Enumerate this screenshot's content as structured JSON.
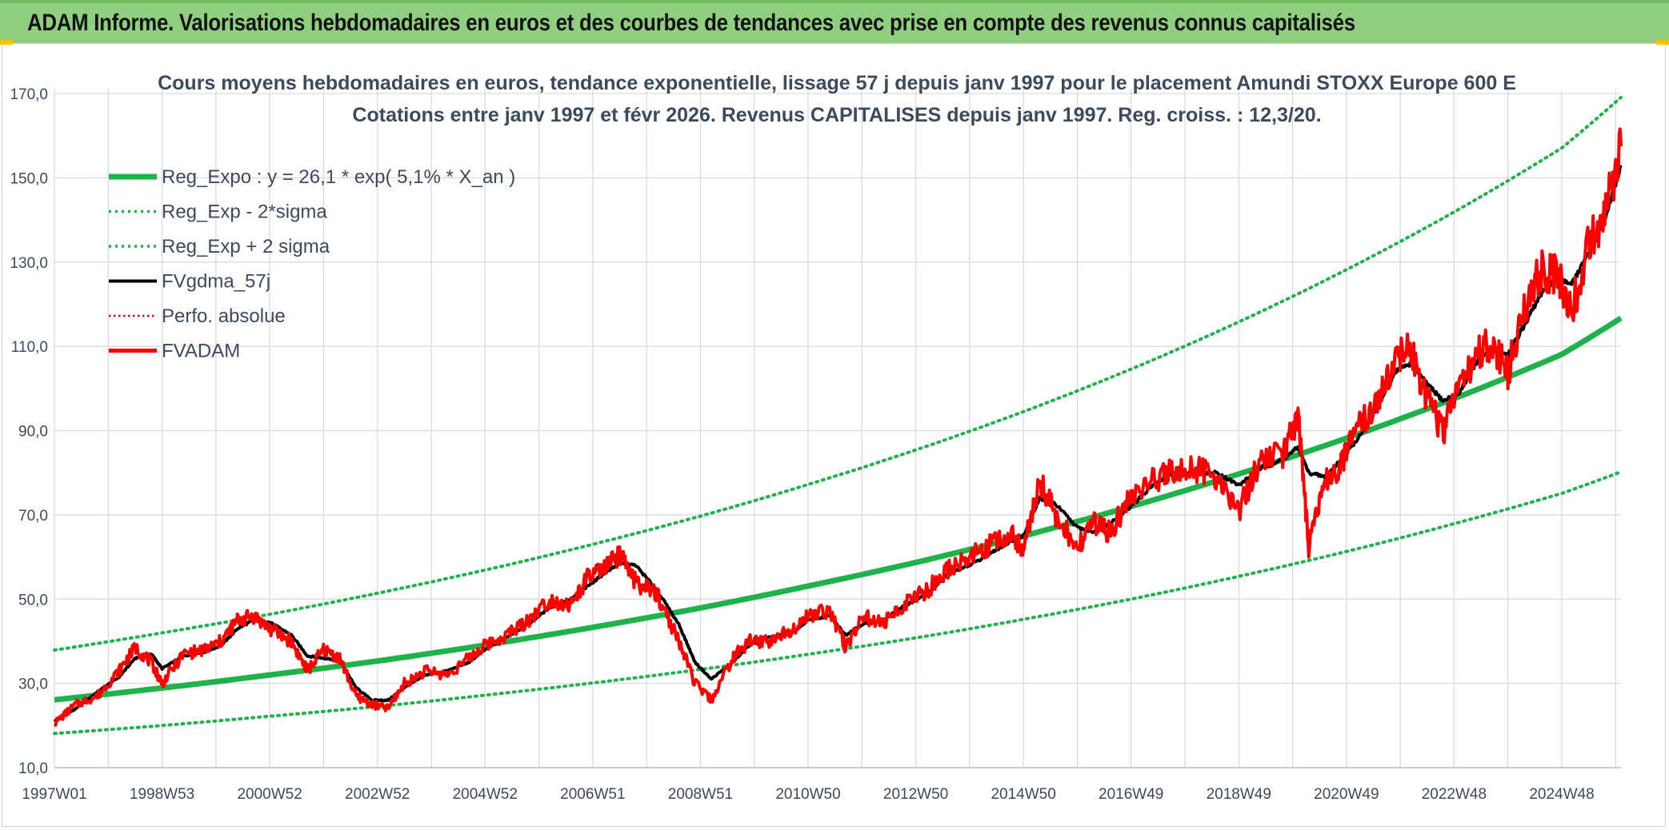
{
  "header": {
    "title": "ADAM Informe. Valorisations hebdomadaires en euros et des courbes de tendances avec prise en compte des revenus connus capitalisés"
  },
  "colors": {
    "header_bg": "#8fcf7f",
    "trend": "#1db34a",
    "actual": "#ff0000",
    "smooth": "#000000",
    "perfo": "#e00000",
    "text": "#3b4a5e",
    "grid": "#d9d9d9"
  },
  "chart_data": {
    "type": "line",
    "title_line1": "Cours moyens hebdomadaires en euros, tendance exponentielle, lissage 57 j depuis janv 1997 pour le placement Amundi STOXX Europe 600 E",
    "title_line2": "Cotations entre janv 1997 et févr 2026. Revenus CAPITALISES depuis janv 1997. Reg. croiss. : 12,3/20.",
    "ylim": [
      10,
      170
    ],
    "xlim": [
      1997.0,
      2026.1
    ],
    "y_ticks": [
      "10,0",
      "30,0",
      "50,0",
      "70,0",
      "90,0",
      "110,0",
      "130,0",
      "150,0",
      "170,0"
    ],
    "y_tick_values": [
      10,
      30,
      50,
      70,
      90,
      110,
      130,
      150,
      170
    ],
    "x_ticks": [
      "1997W01",
      "1998W53",
      "2000W52",
      "2002W52",
      "2004W52",
      "2006W51",
      "2008W51",
      "2010W50",
      "2012W50",
      "2014W50",
      "2016W49",
      "2018W49",
      "2020W49",
      "2022W48",
      "2024W48"
    ],
    "x_tick_years": [
      1997.0,
      1999.0,
      2001.0,
      2003.0,
      2005.0,
      2007.0,
      2009.0,
      2011.0,
      2013.0,
      2015.0,
      2017.0,
      2019.0,
      2021.0,
      2023.0,
      2025.0
    ],
    "legend": [
      {
        "label": "Reg_Expo : y = 26,1 * exp( 5,1% *  X_an )",
        "style": "trend"
      },
      {
        "label": "Reg_Exp - 2*sigma",
        "style": "trend-dotted"
      },
      {
        "label": "Reg_Exp + 2 sigma",
        "style": "trend-dotted"
      },
      {
        "label": "FVgdma_57j",
        "style": "smooth"
      },
      {
        "label": "Perfo. absolue",
        "style": "perfo-dotted"
      },
      {
        "label": "FVADAM",
        "style": "actual"
      }
    ],
    "series": [
      {
        "name": "Reg_Expo",
        "x": [
          1997.0,
          1999.0,
          2001.0,
          2003.0,
          2005.0,
          2007.0,
          2009.0,
          2011.0,
          2013.0,
          2015.0,
          2017.0,
          2019.0,
          2021.0,
          2023.0,
          2025.0,
          2026.1
        ],
        "values": [
          26.1,
          28.9,
          32.0,
          35.3,
          39.1,
          43.3,
          47.9,
          53.1,
          58.7,
          65.0,
          72.0,
          79.7,
          88.2,
          97.6,
          108.1,
          116.7
        ]
      },
      {
        "name": "Reg_Exp - 2*sigma",
        "x": [
          1997.0,
          1999.0,
          2001.0,
          2003.0,
          2005.0,
          2007.0,
          2009.0,
          2011.0,
          2013.0,
          2015.0,
          2017.0,
          2019.0,
          2021.0,
          2023.0,
          2025.0,
          2026.1
        ],
        "values": [
          18.1,
          20.0,
          22.2,
          24.5,
          27.2,
          30.1,
          33.3,
          36.9,
          40.8,
          45.2,
          50.0,
          55.4,
          61.3,
          67.9,
          75.1,
          80.2
        ]
      },
      {
        "name": "Reg_Exp + 2 sigma",
        "x": [
          1997.0,
          1999.0,
          2001.0,
          2003.0,
          2005.0,
          2007.0,
          2009.0,
          2011.0,
          2013.0,
          2015.0,
          2017.0,
          2019.0,
          2021.0,
          2023.0,
          2025.0,
          2026.1
        ],
        "values": [
          37.9,
          42.0,
          46.4,
          51.4,
          56.9,
          63.0,
          69.7,
          77.2,
          85.4,
          94.5,
          104.6,
          115.8,
          128.2,
          141.9,
          157.1,
          169.1
        ]
      },
      {
        "name": "FVgdma_57j",
        "x": [
          1997.0,
          1997.4,
          1997.8,
          1998.2,
          1998.5,
          1998.8,
          1999.0,
          1999.4,
          1999.8,
          2000.1,
          2000.4,
          2000.7,
          2001.0,
          2001.4,
          2001.7,
          2002.0,
          2002.3,
          2002.6,
          2002.9,
          2003.2,
          2003.5,
          2003.9,
          2004.3,
          2004.7,
          2005.0,
          2005.4,
          2005.8,
          2006.2,
          2006.6,
          2006.9,
          2007.2,
          2007.5,
          2007.8,
          2008.2,
          2008.6,
          2008.9,
          2009.2,
          2009.6,
          2009.9,
          2010.3,
          2010.7,
          2011.0,
          2011.4,
          2011.7,
          2012.0,
          2012.4,
          2012.8,
          2013.2,
          2013.6,
          2014.0,
          2014.4,
          2014.8,
          2015.0,
          2015.3,
          2015.6,
          2016.0,
          2016.3,
          2016.6,
          2017.0,
          2017.4,
          2017.8,
          2018.2,
          2018.6,
          2019.0,
          2019.4,
          2019.8,
          2020.1,
          2020.3,
          2020.6,
          2020.9,
          2021.2,
          2021.6,
          2021.9,
          2022.2,
          2022.5,
          2022.8,
          2023.1,
          2023.4,
          2023.7,
          2024.0,
          2024.3,
          2024.6,
          2024.9,
          2025.2,
          2025.5,
          2025.8,
          2026.1
        ],
        "values": [
          21.0,
          24.0,
          28.0,
          31.5,
          36.0,
          37.0,
          33.5,
          36.5,
          37.5,
          39.0,
          43.0,
          45.0,
          44.5,
          41.5,
          36.5,
          36.0,
          35.5,
          29.0,
          26.0,
          26.0,
          29.0,
          32.0,
          33.0,
          35.0,
          38.0,
          41.0,
          44.0,
          48.0,
          50.0,
          53.0,
          56.0,
          58.5,
          58.0,
          52.0,
          44.0,
          35.0,
          31.0,
          35.0,
          39.0,
          41.0,
          42.0,
          45.0,
          46.0,
          41.5,
          44.0,
          45.0,
          48.5,
          51.0,
          56.0,
          58.0,
          61.0,
          64.0,
          65.0,
          74.0,
          72.5,
          67.0,
          66.0,
          68.0,
          72.0,
          77.0,
          80.0,
          80.0,
          80.0,
          77.0,
          81.0,
          83.0,
          86.0,
          80.0,
          79.0,
          83.0,
          88.0,
          96.0,
          104.0,
          106.0,
          101.0,
          97.0,
          99.0,
          106.0,
          109.0,
          108.0,
          115.0,
          122.0,
          126.0,
          125.0,
          132.0,
          140.0,
          153.0
        ]
      },
      {
        "name": "FVADAM",
        "x": [
          1997.0,
          1997.4,
          1997.8,
          1998.2,
          1998.5,
          1998.8,
          1999.0,
          1999.4,
          1999.8,
          2000.1,
          2000.4,
          2000.7,
          2001.0,
          2001.4,
          2001.7,
          2002.0,
          2002.3,
          2002.6,
          2002.9,
          2003.2,
          2003.5,
          2003.9,
          2004.3,
          2004.7,
          2005.0,
          2005.4,
          2005.8,
          2006.2,
          2006.6,
          2006.9,
          2007.2,
          2007.5,
          2007.8,
          2008.2,
          2008.6,
          2008.9,
          2009.2,
          2009.6,
          2009.9,
          2010.3,
          2010.7,
          2011.0,
          2011.4,
          2011.7,
          2012.0,
          2012.4,
          2012.8,
          2013.2,
          2013.6,
          2014.0,
          2014.4,
          2014.8,
          2015.0,
          2015.3,
          2015.6,
          2016.0,
          2016.3,
          2016.6,
          2017.0,
          2017.4,
          2017.8,
          2018.2,
          2018.6,
          2019.0,
          2019.4,
          2019.8,
          2020.1,
          2020.3,
          2020.6,
          2020.9,
          2021.2,
          2021.6,
          2021.9,
          2022.2,
          2022.5,
          2022.8,
          2023.1,
          2023.4,
          2023.7,
          2024.0,
          2024.3,
          2024.6,
          2024.9,
          2025.2,
          2025.5,
          2025.8,
          2026.1
        ],
        "values": [
          20.5,
          25.0,
          27.0,
          33.0,
          38.5,
          35.0,
          30.0,
          37.0,
          38.0,
          40.0,
          45.0,
          46.0,
          43.0,
          40.0,
          33.0,
          38.0,
          36.0,
          27.0,
          25.0,
          24.0,
          30.0,
          33.0,
          32.0,
          36.0,
          39.0,
          41.5,
          45.0,
          50.0,
          48.5,
          55.0,
          57.0,
          60.5,
          54.0,
          51.0,
          40.0,
          30.0,
          26.0,
          36.0,
          40.0,
          40.0,
          43.0,
          46.0,
          47.5,
          38.5,
          46.0,
          44.0,
          49.0,
          52.0,
          57.0,
          60.0,
          63.0,
          65.0,
          62.0,
          78.0,
          70.0,
          62.0,
          68.0,
          66.0,
          74.0,
          78.0,
          81.0,
          81.0,
          79.0,
          71.0,
          83.0,
          84.0,
          93.5,
          62.0,
          78.0,
          82.0,
          90.0,
          97.0,
          108.0,
          109.0,
          97.0,
          90.0,
          101.0,
          108.0,
          110.5,
          104.0,
          118.0,
          128.0,
          127.0,
          119.0,
          134.0,
          141.0,
          157.5
        ]
      }
    ]
  }
}
